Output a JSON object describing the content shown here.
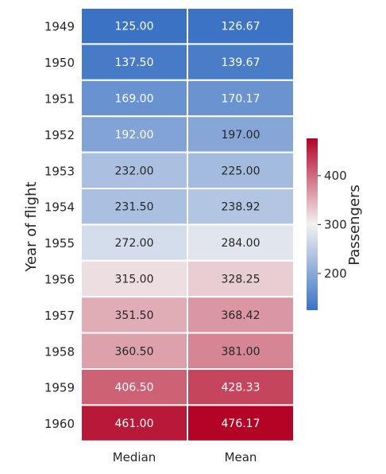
{
  "chart_data": {
    "type": "heatmap",
    "title": "",
    "xlabel": "",
    "ylabel": "Year of flight",
    "columns": [
      "Median",
      "Mean"
    ],
    "rows": [
      "1949",
      "1950",
      "1951",
      "1952",
      "1953",
      "1954",
      "1955",
      "1956",
      "1957",
      "1958",
      "1959",
      "1960"
    ],
    "values": [
      [
        125.0,
        126.67
      ],
      [
        137.5,
        139.67
      ],
      [
        169.0,
        170.17
      ],
      [
        192.0,
        197.0
      ],
      [
        232.0,
        225.0
      ],
      [
        231.5,
        238.92
      ],
      [
        272.0,
        284.0
      ],
      [
        315.0,
        328.25
      ],
      [
        351.5,
        368.42
      ],
      [
        360.5,
        381.0
      ],
      [
        406.5,
        428.33
      ],
      [
        461.0,
        476.17
      ]
    ],
    "value_format": "2 decimals",
    "colormap": "coolwarm",
    "vmin": 125.0,
    "vmax": 476.17,
    "colorbar": {
      "label": "Passengers",
      "ticks": [
        200,
        300,
        400
      ]
    }
  },
  "colors": {
    "low": "#3b72c4",
    "mid": "#f2f2f2",
    "high": "#b40426",
    "cell_border": "#ffffff",
    "text_dark": "#262626",
    "text_light": "#ffffff"
  }
}
